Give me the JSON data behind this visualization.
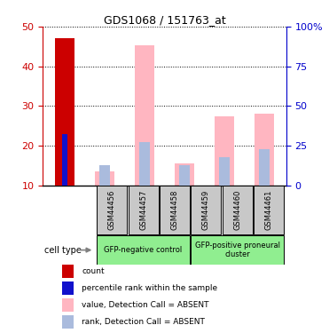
{
  "title": "GDS1068 / 151763_at",
  "samples": [
    "GSM44456",
    "GSM44457",
    "GSM44458",
    "GSM44459",
    "GSM44460",
    "GSM44461"
  ],
  "count_values": [
    47.2,
    0,
    0,
    0,
    0,
    0
  ],
  "percentile_values": [
    23.0,
    0,
    0,
    0,
    0,
    0
  ],
  "value_absent": [
    0,
    13.5,
    45.2,
    15.5,
    27.3,
    28.0
  ],
  "rank_absent": [
    0,
    15.2,
    21.0,
    15.0,
    17.0,
    19.2
  ],
  "ylim_left": [
    10,
    50
  ],
  "ylim_right": [
    0,
    100
  ],
  "yticks_left": [
    10,
    20,
    30,
    40,
    50
  ],
  "yticks_right": [
    0,
    25,
    50,
    75,
    100
  ],
  "ytick_labels_right": [
    "0",
    "25",
    "50",
    "75",
    "100%"
  ],
  "bar_width": 0.5,
  "count_color": "#CC0000",
  "percentile_color": "#1111CC",
  "value_absent_color": "#FFB6C1",
  "rank_absent_color": "#AABBDD",
  "axis_color_left": "#CC0000",
  "axis_color_right": "#0000CC",
  "legend_items": [
    {
      "label": "count",
      "color": "#CC0000"
    },
    {
      "label": "percentile rank within the sample",
      "color": "#1111CC"
    },
    {
      "label": "value, Detection Call = ABSENT",
      "color": "#FFB6C1"
    },
    {
      "label": "rank, Detection Call = ABSENT",
      "color": "#AABBDD"
    }
  ],
  "cell_type_label": "cell type",
  "group1_indices": [
    0,
    1,
    2
  ],
  "group2_indices": [
    3,
    4,
    5
  ],
  "group1_label": "GFP-negative control",
  "group2_label": "GFP-positive proneural\ncluster",
  "group_color": "#90EE90",
  "sample_box_color": "#C8C8C8"
}
